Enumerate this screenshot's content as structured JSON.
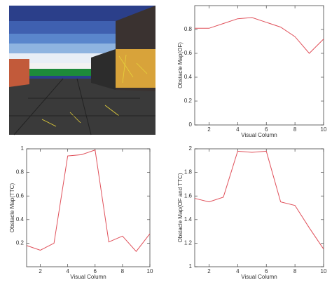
{
  "chart_data": [
    {
      "type": "line",
      "ylabel": "Obstacle Map(OF)",
      "xlabel": "Visual Column",
      "x": [
        1,
        2,
        3,
        4,
        5,
        6,
        7,
        8,
        9,
        10
      ],
      "series": [
        {
          "color": "#e0505a",
          "values": [
            0.81,
            0.81,
            0.85,
            0.89,
            0.9,
            0.86,
            0.82,
            0.74,
            0.6,
            0.72
          ]
        }
      ],
      "xlim": [
        1,
        10
      ],
      "xticks": [
        2,
        4,
        6,
        8,
        10
      ],
      "ylim": [
        0,
        1
      ],
      "yticks": [
        0,
        0.2,
        0.4,
        0.6,
        0.8
      ]
    },
    {
      "type": "line",
      "ylabel": "Obstacle Map(TTC)",
      "xlabel": "Visual Column",
      "x": [
        1,
        2,
        3,
        4,
        5,
        6,
        7,
        8,
        9,
        10
      ],
      "series": [
        {
          "color": "#e0505a",
          "values": [
            0.18,
            0.14,
            0.2,
            0.94,
            0.95,
            0.99,
            0.21,
            0.26,
            0.13,
            0.28
          ]
        }
      ],
      "xlim": [
        1,
        10
      ],
      "xticks": [
        2,
        4,
        6,
        8,
        10
      ],
      "ylim": [
        0,
        1
      ],
      "yticks": [
        0.2,
        0.4,
        0.6,
        0.8,
        1
      ]
    },
    {
      "type": "line",
      "ylabel": "Obstacle Map(OF and TTC)",
      "xlabel": "Visual Column",
      "x": [
        1,
        2,
        3,
        4,
        5,
        6,
        7,
        8,
        9,
        10
      ],
      "series": [
        {
          "color": "#e0505a",
          "values": [
            1.58,
            1.55,
            1.59,
            1.98,
            1.97,
            1.98,
            1.55,
            1.52,
            1.33,
            1.15
          ]
        }
      ],
      "xlim": [
        1,
        10
      ],
      "xticks": [
        2,
        4,
        6,
        8,
        10
      ],
      "ylim": [
        1,
        2
      ],
      "yticks": [
        1,
        1.2,
        1.4,
        1.6,
        1.8,
        2
      ]
    }
  ]
}
